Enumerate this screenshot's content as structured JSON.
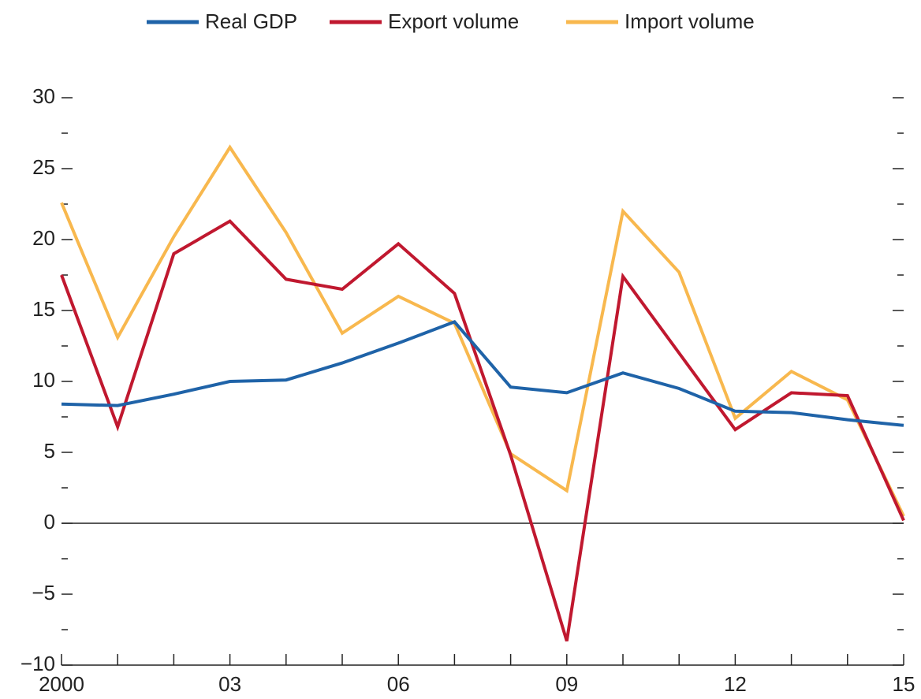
{
  "chart_data": {
    "type": "line",
    "x": [
      2000,
      2001,
      2002,
      2003,
      2004,
      2005,
      2006,
      2007,
      2008,
      2009,
      2010,
      2011,
      2012,
      2013,
      2014,
      2015
    ],
    "series": [
      {
        "name": "Real GDP",
        "color": "#1f63a8",
        "values": [
          8.4,
          8.3,
          9.1,
          10.0,
          10.1,
          11.3,
          12.7,
          14.2,
          9.6,
          9.2,
          10.6,
          9.5,
          7.9,
          7.8,
          7.3,
          6.9
        ]
      },
      {
        "name": "Export volume",
        "color": "#c0182f",
        "values": [
          17.5,
          6.8,
          19.0,
          21.3,
          17.2,
          16.5,
          19.7,
          16.2,
          4.8,
          -8.3,
          17.4,
          12.0,
          6.6,
          9.2,
          9.0,
          0.2
        ]
      },
      {
        "name": "Import volume",
        "color": "#f8b84e",
        "values": [
          22.6,
          13.1,
          20.2,
          26.5,
          20.5,
          13.4,
          16.0,
          14.1,
          4.9,
          2.3,
          22.0,
          17.7,
          7.4,
          10.7,
          8.7,
          0.5
        ]
      }
    ],
    "xlim": [
      2000,
      2015
    ],
    "xticks": [
      {
        "value": 2000,
        "label": "2000"
      },
      {
        "value": 2003,
        "label": "03"
      },
      {
        "value": 2006,
        "label": "06"
      },
      {
        "value": 2009,
        "label": "09"
      },
      {
        "value": 2012,
        "label": "12"
      },
      {
        "value": 2015,
        "label": "15"
      }
    ],
    "xminor": [
      2001,
      2002,
      2004,
      2005,
      2007,
      2008,
      2010,
      2011,
      2013,
      2014
    ],
    "ylim": [
      -10,
      30
    ],
    "yticks": [
      {
        "value": -10,
        "label": "−10"
      },
      {
        "value": -5,
        "label": "−5"
      },
      0,
      5,
      10,
      15,
      20,
      25,
      30
    ],
    "yminor": [
      -7.5,
      -2.5,
      2.5,
      7.5,
      12.5,
      17.5,
      22.5,
      27.5
    ],
    "legend": "top"
  }
}
